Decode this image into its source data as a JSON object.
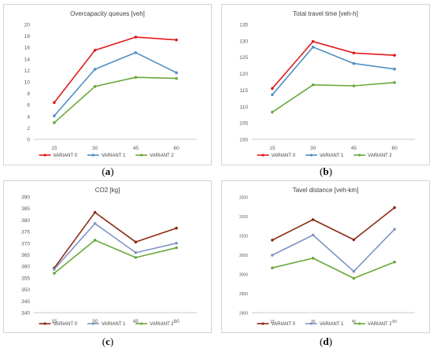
{
  "chart_data": [
    {
      "type": "line",
      "title": "Overcapacity queues [veh]",
      "subfigure_label": "a",
      "categories": [
        "15",
        "30",
        "45",
        "60"
      ],
      "y_ticks": [
        "0",
        "2",
        "4",
        "6",
        "8",
        "10",
        "12",
        "14",
        "16",
        "18",
        "20"
      ],
      "ylim": [
        0,
        20
      ],
      "grid": false,
      "legend_position": "bottom",
      "series": [
        {
          "name": "VARIANT 0",
          "color": "#e31b1b",
          "values": [
            6.4,
            15.5,
            17.8,
            17.3
          ]
        },
        {
          "name": "VARIANT 1",
          "color": "#4f8fc4",
          "values": [
            4.1,
            12.2,
            15.1,
            11.6
          ]
        },
        {
          "name": "VARIANT 2",
          "color": "#6ba83b",
          "values": [
            2.9,
            9.2,
            10.8,
            10.6
          ]
        }
      ]
    },
    {
      "type": "line",
      "title": "Total travel time [veh-h]",
      "subfigure_label": "b",
      "categories": [
        "15",
        "30",
        "45",
        "60"
      ],
      "y_ticks": [
        "100",
        "105",
        "110",
        "115",
        "120",
        "125",
        "130",
        "135"
      ],
      "ylim": [
        100,
        135
      ],
      "grid": false,
      "legend_position": "bottom",
      "series": [
        {
          "name": "VARIANT 0",
          "color": "#e31b1b",
          "values": [
            115.5,
            129.8,
            126.3,
            125.6
          ]
        },
        {
          "name": "VARIANT 1",
          "color": "#4f8fc4",
          "values": [
            113.6,
            128.1,
            123.1,
            121.4
          ]
        },
        {
          "name": "VARIANT 2",
          "color": "#6ba83b",
          "values": [
            108.3,
            116.6,
            116.3,
            117.3
          ]
        }
      ]
    },
    {
      "type": "line",
      "title": "CO2 [kg]",
      "subfigure_label": "c",
      "categories": [
        "15",
        "30",
        "45",
        "60"
      ],
      "y_ticks": [
        "340",
        "345",
        "350",
        "355",
        "360",
        "365",
        "370",
        "375",
        "380",
        "385",
        "390"
      ],
      "ylim": [
        340,
        390
      ],
      "grid": false,
      "legend_position": "bottom",
      "series": [
        {
          "name": "VARIANT 0",
          "color": "#8a2b12",
          "values": [
            359.3,
            383.3,
            370.5,
            376.5
          ]
        },
        {
          "name": "VARIANT 1",
          "color": "#8095c2",
          "values": [
            358.7,
            378.5,
            365.9,
            370.0
          ]
        },
        {
          "name": "VARIANT 2",
          "color": "#6ba83b",
          "values": [
            357.0,
            371.3,
            363.8,
            368.0
          ]
        }
      ]
    },
    {
      "type": "line",
      "title": "Tavel distance [veh-km]",
      "subfigure_label": "d",
      "categories": [
        "15",
        "30",
        "45",
        "60"
      ],
      "y_ticks": [
        "2900",
        "2950",
        "3000",
        "3050",
        "3100",
        "3150",
        "3200"
      ],
      "ylim": [
        2900,
        3200
      ],
      "grid": false,
      "legend_position": "bottom",
      "series": [
        {
          "name": "VARIANT 0",
          "color": "#8a2b12",
          "values": [
            3088,
            3141,
            3089,
            3172
          ]
        },
        {
          "name": "VARIANT 1",
          "color": "#8095c2",
          "values": [
            3049,
            3101,
            3007,
            3116
          ]
        },
        {
          "name": "VARIANT 2",
          "color": "#6ba83b",
          "values": [
            3016,
            3041,
            2989,
            3031
          ]
        }
      ]
    }
  ]
}
